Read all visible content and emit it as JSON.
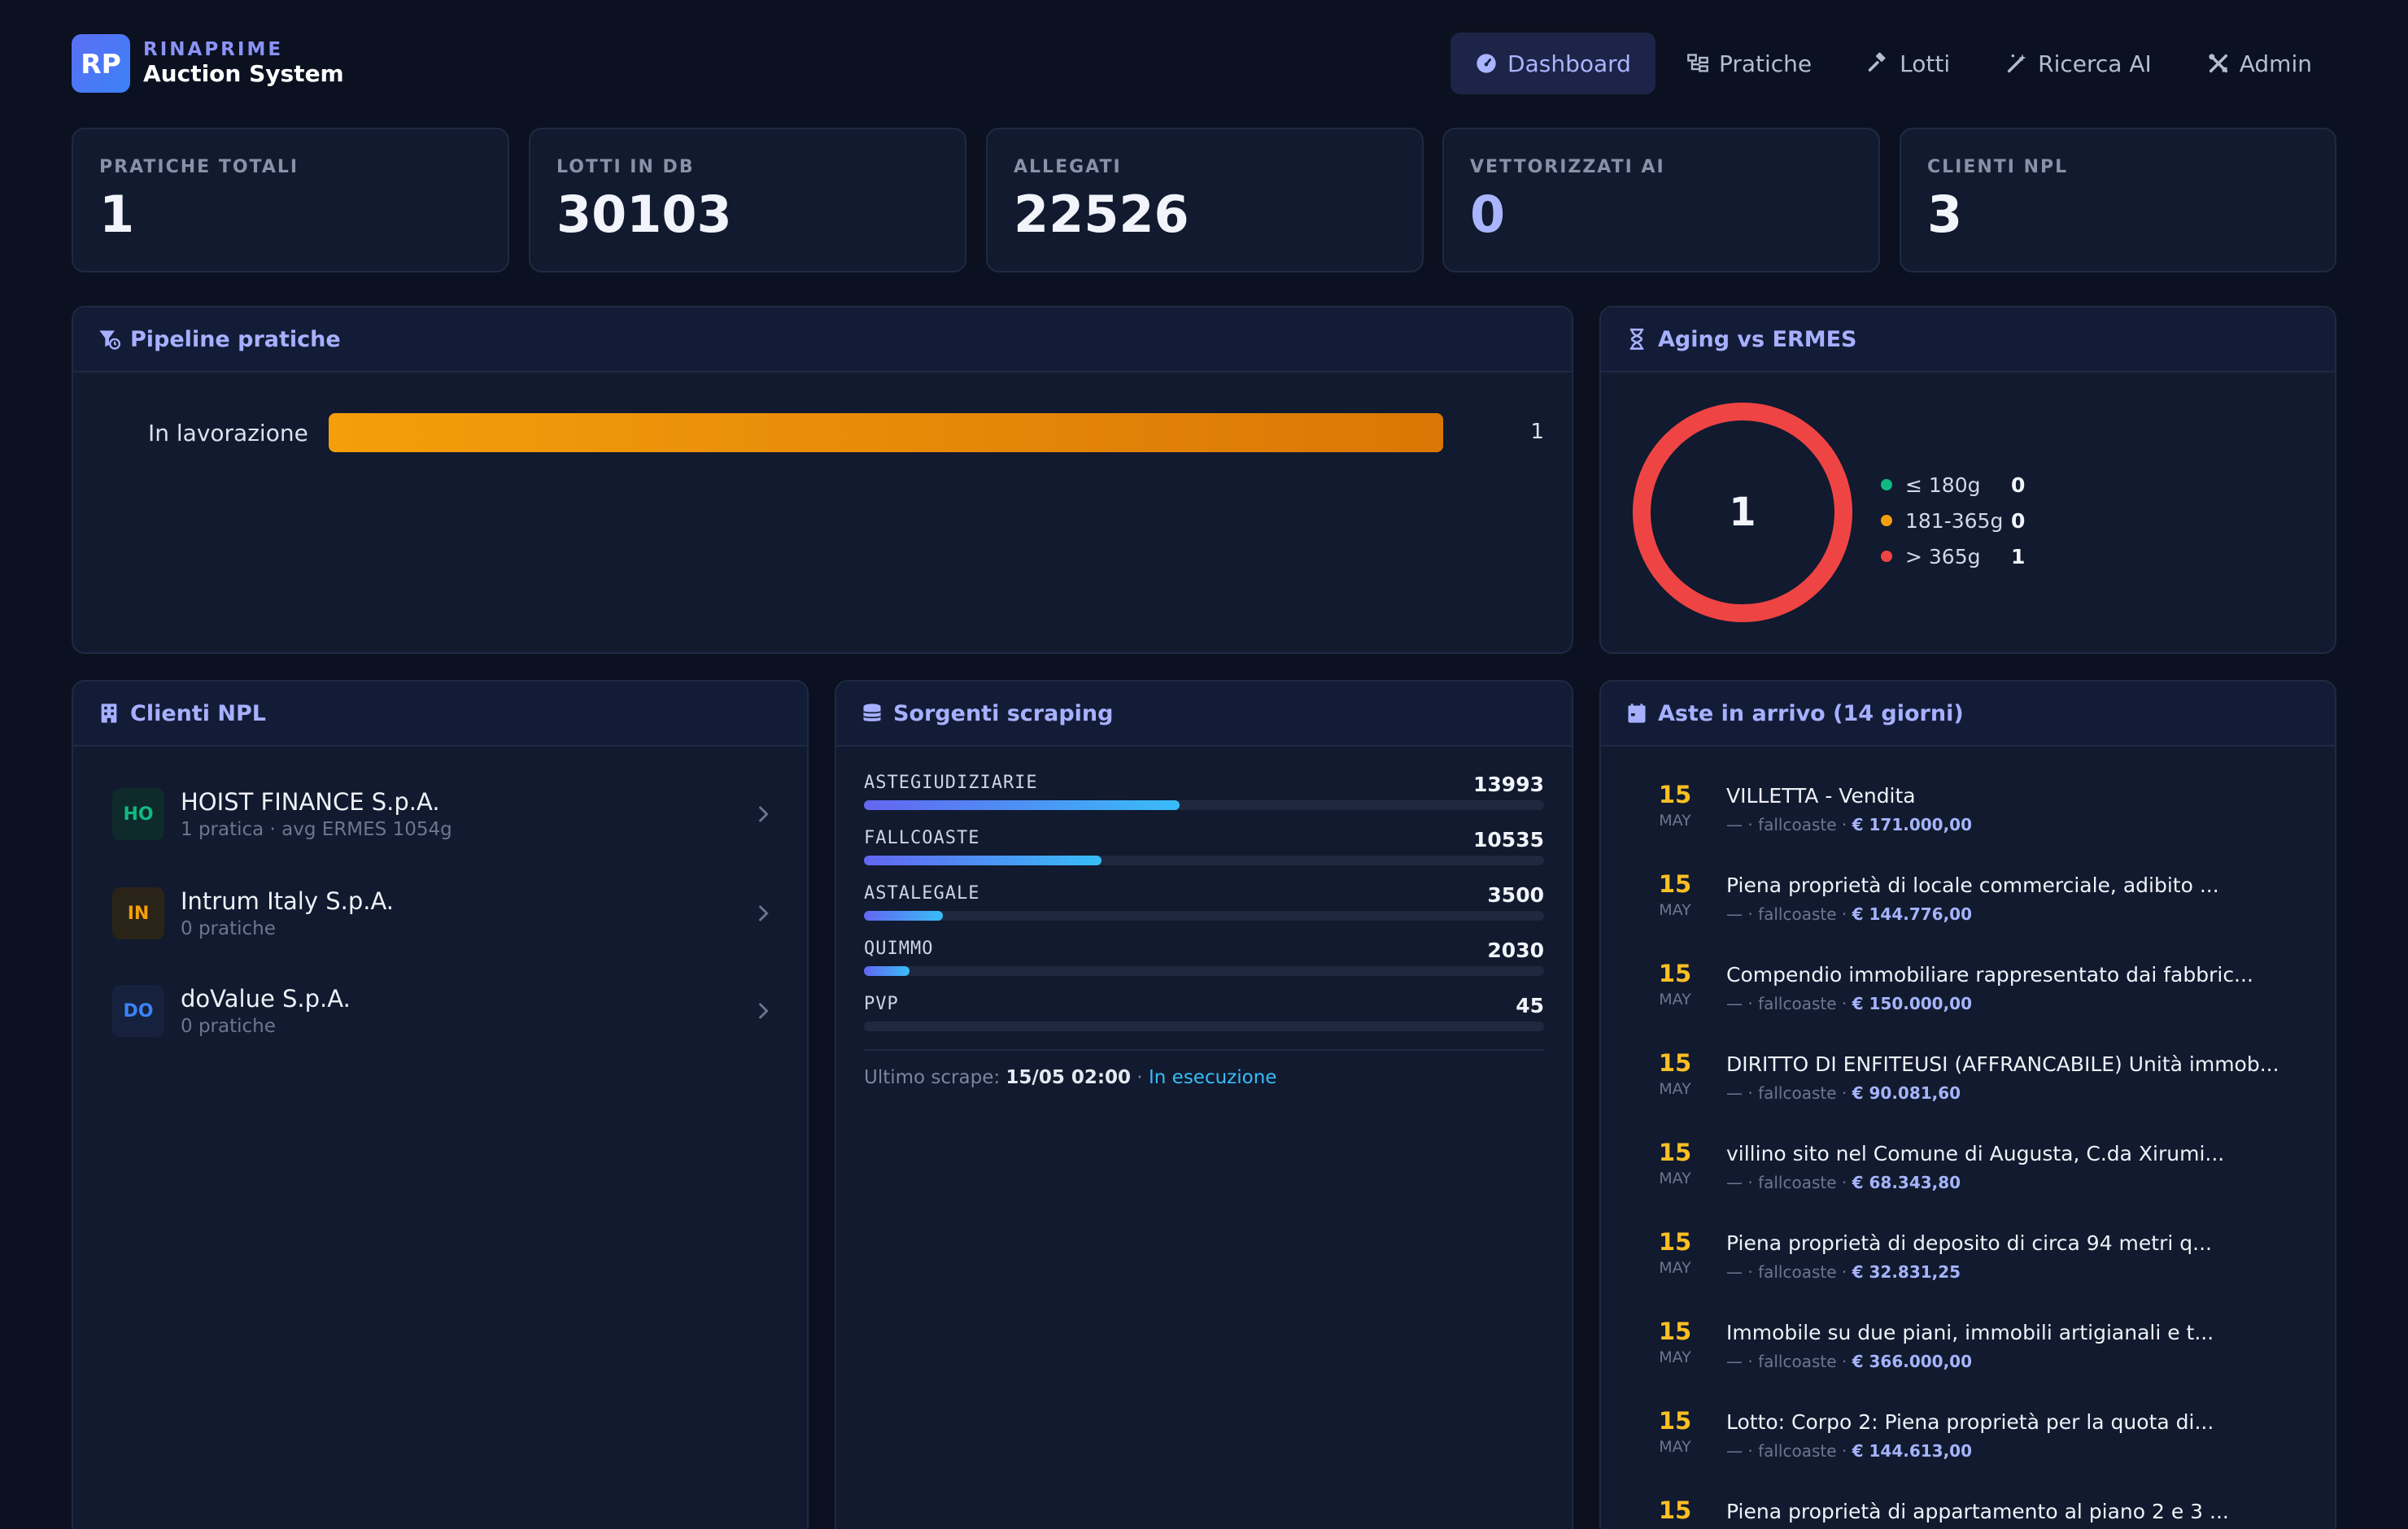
{
  "brand": {
    "logo": "RP",
    "subtitle": "RINAPRIME",
    "title": "Auction System"
  },
  "nav": [
    {
      "label": "Dashboard",
      "icon": "dashboard-icon",
      "active": true
    },
    {
      "label": "Pratiche",
      "icon": "folder-tree-icon"
    },
    {
      "label": "Lotti",
      "icon": "gavel-icon"
    },
    {
      "label": "Ricerca AI",
      "icon": "magic-wand-icon"
    },
    {
      "label": "Admin",
      "icon": "tools-icon"
    }
  ],
  "stats": [
    {
      "label": "PRATICHE TOTALI",
      "value": "1"
    },
    {
      "label": "LOTTI IN DB",
      "value": "30103"
    },
    {
      "label": "ALLEGATI",
      "value": "22526"
    },
    {
      "label": "VETTORIZZATI AI",
      "value": "0"
    },
    {
      "label": "CLIENTI NPL",
      "value": "3"
    }
  ],
  "pipeline": {
    "title": "Pipeline pratiche",
    "rows": [
      {
        "label": "In lavorazione",
        "count": "1",
        "fraction": 1.0
      }
    ]
  },
  "aging": {
    "title": "Aging vs ERMES",
    "total": "1",
    "legend": [
      {
        "label": "≤ 180g",
        "value": "0",
        "color": "#10b981"
      },
      {
        "label": "181-365g",
        "value": "0",
        "color": "#f59e0b"
      },
      {
        "label": "> 365g",
        "value": "1",
        "color": "#ef4444"
      }
    ]
  },
  "clients": {
    "title": "Clienti NPL",
    "items": [
      {
        "initials": "HO",
        "name": "HOIST FINANCE S.p.A.",
        "sub": "1 pratica · avg ERMES 1054g",
        "fg": "#10b981",
        "bg": "#0f2a2a"
      },
      {
        "initials": "IN",
        "name": "Intrum Italy S.p.A.",
        "sub": "0 pratiche",
        "fg": "#f59e0b",
        "bg": "#2a2418"
      },
      {
        "initials": "DO",
        "name": "doValue S.p.A.",
        "sub": "0 pratiche",
        "fg": "#3b82f6",
        "bg": "#16223d"
      }
    ]
  },
  "sources": {
    "title": "Sorgenti scraping",
    "items": [
      {
        "name": "ASTEGIUDIZIARIE",
        "count": "13993",
        "fraction": 0.464
      },
      {
        "name": "FALLCOASTE",
        "count": "10535",
        "fraction": 0.349
      },
      {
        "name": "ASTALEGALE",
        "count": "3500",
        "fraction": 0.116
      },
      {
        "name": "QUIMMO",
        "count": "2030",
        "fraction": 0.067
      },
      {
        "name": "PVP",
        "count": "45",
        "fraction": 0.0
      }
    ],
    "last_label": "Ultimo scrape:",
    "last_value": "15/05 02:00",
    "separator": " · ",
    "status": "In esecuzione"
  },
  "auctions": {
    "title": "Aste in arrivo (14 giorni)",
    "items": [
      {
        "day": "15",
        "month": "MAY",
        "title": "VILLETTA - Vendita",
        "meta": "— · fallcoaste · ",
        "price": "€ 171.000,00"
      },
      {
        "day": "15",
        "month": "MAY",
        "title": "Piena proprietà di locale commerciale, adibito ...",
        "meta": "— · fallcoaste · ",
        "price": "€ 144.776,00"
      },
      {
        "day": "15",
        "month": "MAY",
        "title": "Compendio immobiliare rappresentato dai fabbric...",
        "meta": "— · fallcoaste · ",
        "price": "€ 150.000,00"
      },
      {
        "day": "15",
        "month": "MAY",
        "title": "DIRITTO DI ENFITEUSI (AFFRANCABILE) Unità immob...",
        "meta": "— · fallcoaste · ",
        "price": "€ 90.081,60"
      },
      {
        "day": "15",
        "month": "MAY",
        "title": "villino sito nel Comune di Augusta, C.da Xirumi...",
        "meta": "— · fallcoaste · ",
        "price": "€ 68.343,80"
      },
      {
        "day": "15",
        "month": "MAY",
        "title": "Piena proprietà di deposito di circa 94 metri q...",
        "meta": "— · fallcoaste · ",
        "price": "€ 32.831,25"
      },
      {
        "day": "15",
        "month": "MAY",
        "title": "Immobile su due piani, immobili artigianali e t...",
        "meta": "— · fallcoaste · ",
        "price": "€ 366.000,00"
      },
      {
        "day": "15",
        "month": "MAY",
        "title": "Lotto: Corpo 2: Piena proprietà per la quota di...",
        "meta": "— · fallcoaste · ",
        "price": "€ 144.613,00"
      },
      {
        "day": "15",
        "month": "MAY",
        "title": "Piena proprietà di appartamento al piano 2 e 3 ...",
        "meta": "",
        "price": ""
      }
    ]
  }
}
